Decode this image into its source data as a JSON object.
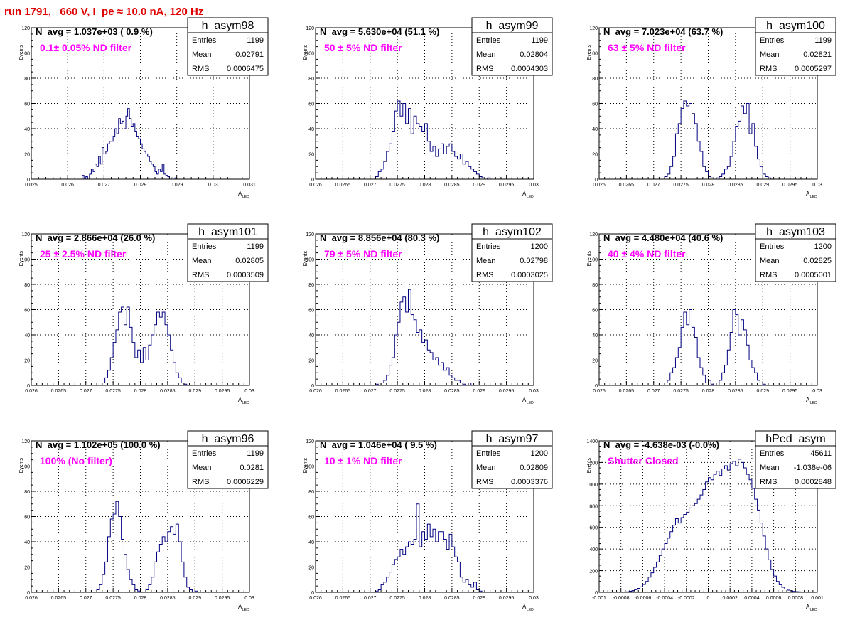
{
  "page": {
    "title": "run 1791,   660 V, I_pe ≈ 10.0 nA, 120 Hz",
    "colors": {
      "title": "#e00000",
      "annotation": "#ff00ff",
      "histogram": "#000080",
      "grid": "#000000"
    }
  },
  "chart_data": [
    {
      "type": "bar",
      "name": "h_asym98",
      "title": "N_avg = 1.037e+03 ( 0.9 %)",
      "annotation": "0.1± 0.05% ND filter",
      "stats": {
        "entries": "1199",
        "mean": "0.02791",
        "rms": "0.0006475"
      },
      "xlabel": "A",
      "xlabel_sub": "LED",
      "ylabel": "Events",
      "xlim": [
        0.025,
        0.031
      ],
      "ylim": [
        0,
        120
      ],
      "xticks": [
        0.025,
        0.026,
        0.027,
        0.028,
        0.029,
        0.03,
        0.031
      ],
      "xticklabels": [
        "0.025",
        "0.026",
        "0.027",
        "0.028",
        "0.029",
        "0.03",
        "0.031"
      ],
      "yticks": [
        0,
        20,
        40,
        60,
        80,
        100,
        120
      ],
      "bin_edges": [
        0.0264,
        0.029
      ],
      "values": [
        3,
        0,
        2,
        0,
        4,
        8,
        6,
        12,
        10,
        18,
        12,
        25,
        20,
        22,
        28,
        30,
        30,
        34,
        40,
        36,
        48,
        44,
        46,
        40,
        50,
        56,
        48,
        42,
        44,
        38,
        34,
        32,
        28,
        24,
        22,
        20,
        18,
        14,
        12,
        10,
        6,
        4,
        8,
        6,
        12,
        4,
        3,
        2,
        0,
        1,
        0,
        1
      ]
    },
    {
      "type": "bar",
      "name": "h_asym99",
      "title": "N_avg = 5.630e+04 (51.1 %)",
      "annotation": "50 ± 5% ND filter",
      "stats": {
        "entries": "1199",
        "mean": "0.02804",
        "rms": "0.0004303"
      },
      "xlabel": "A",
      "xlabel_sub": "LED",
      "ylabel": "Events",
      "xlim": [
        0.026,
        0.03
      ],
      "ylim": [
        0,
        120
      ],
      "xticks": [
        0.026,
        0.0265,
        0.027,
        0.0275,
        0.028,
        0.0285,
        0.029,
        0.0295,
        0.03
      ],
      "xticklabels": [
        "0.026",
        "0.0265",
        "0.027",
        "0.0275",
        "0.028",
        "0.0285",
        "0.029",
        "0.0295",
        "0.03"
      ],
      "yticks": [
        0,
        20,
        40,
        60,
        80,
        100,
        120
      ],
      "bin_edges": [
        0.0271,
        0.0293
      ],
      "values": [
        2,
        6,
        8,
        14,
        22,
        28,
        38,
        54,
        62,
        50,
        60,
        44,
        56,
        36,
        50,
        44,
        42,
        38,
        44,
        30,
        22,
        26,
        18,
        24,
        28,
        20,
        26,
        28,
        22,
        18,
        16,
        20,
        12,
        14,
        10,
        8,
        6,
        4,
        2,
        1,
        0,
        1,
        0,
        0
      ]
    },
    {
      "type": "bar",
      "name": "h_asym100",
      "title": "N_avg = 7.023e+04 (63.7 %)",
      "annotation": "63 ± 5% ND filter",
      "stats": {
        "entries": "1199",
        "mean": "0.02821",
        "rms": "0.0005297"
      },
      "xlabel": "A",
      "xlabel_sub": "LED",
      "ylabel": "Events",
      "xlim": [
        0.026,
        0.03
      ],
      "ylim": [
        0,
        120
      ],
      "xticks": [
        0.026,
        0.0265,
        0.027,
        0.0275,
        0.028,
        0.0285,
        0.029,
        0.0295,
        0.03
      ],
      "xticklabels": [
        "0.026",
        "0.0265",
        "0.027",
        "0.0275",
        "0.028",
        "0.0285",
        "0.029",
        "0.0295",
        "0.03"
      ],
      "yticks": [
        0,
        20,
        40,
        60,
        80,
        100,
        120
      ],
      "bin_edges": [
        0.0272,
        0.0294
      ],
      "values": [
        2,
        4,
        10,
        18,
        36,
        44,
        56,
        62,
        58,
        60,
        52,
        44,
        30,
        22,
        10,
        6,
        2,
        1,
        0,
        1,
        2,
        4,
        8,
        10,
        18,
        30,
        42,
        46,
        58,
        52,
        60,
        36,
        44,
        26,
        16,
        10,
        4,
        2,
        1,
        0,
        0,
        0,
        0,
        0
      ]
    },
    {
      "type": "bar",
      "name": "h_asym101",
      "title": "N_avg = 2.866e+04 (26.0 %)",
      "annotation": "25 ± 2.5% ND filter",
      "stats": {
        "entries": "1199",
        "mean": "0.02805",
        "rms": "0.0003509"
      },
      "xlabel": "A",
      "xlabel_sub": "LED",
      "ylabel": "Events",
      "xlim": [
        0.026,
        0.03
      ],
      "ylim": [
        0,
        120
      ],
      "xticks": [
        0.026,
        0.0265,
        0.027,
        0.0275,
        0.028,
        0.0285,
        0.029,
        0.0295,
        0.03
      ],
      "xticklabels": [
        "0.026",
        "0.0265",
        "0.027",
        "0.0275",
        "0.028",
        "0.0285",
        "0.029",
        "0.0295",
        "0.03"
      ],
      "yticks": [
        0,
        20,
        40,
        60,
        80,
        100,
        120
      ],
      "bin_edges": [
        0.0273,
        0.029
      ],
      "values": [
        2,
        6,
        12,
        22,
        34,
        44,
        58,
        62,
        48,
        62,
        46,
        34,
        22,
        28,
        18,
        30,
        20,
        32,
        40,
        48,
        58,
        54,
        58,
        48,
        40,
        28,
        18,
        10,
        6,
        2,
        1,
        0,
        0,
        0
      ]
    },
    {
      "type": "bar",
      "name": "h_asym102",
      "title": "N_avg = 8.856e+04 (80.3 %)",
      "annotation": "79 ± 5% ND filter",
      "stats": {
        "entries": "1200",
        "mean": "0.02798",
        "rms": "0.0003025"
      },
      "xlabel": "A",
      "xlabel_sub": "LED",
      "ylabel": "Events",
      "xlim": [
        0.026,
        0.03
      ],
      "ylim": [
        0,
        120
      ],
      "xticks": [
        0.026,
        0.0265,
        0.027,
        0.0275,
        0.028,
        0.0285,
        0.029,
        0.0295,
        0.03
      ],
      "xticklabels": [
        "0.026",
        "0.0265",
        "0.027",
        "0.0275",
        "0.028",
        "0.0285",
        "0.029",
        "0.0295",
        "0.03"
      ],
      "yticks": [
        0,
        20,
        40,
        60,
        80,
        100,
        120
      ],
      "bin_edges": [
        0.0271,
        0.029
      ],
      "values": [
        1,
        0,
        2,
        4,
        8,
        16,
        22,
        40,
        50,
        66,
        70,
        58,
        76,
        56,
        52,
        42,
        44,
        34,
        36,
        28,
        26,
        20,
        22,
        16,
        18,
        12,
        14,
        8,
        6,
        4,
        4,
        2,
        1,
        0,
        2,
        0,
        0,
        0
      ]
    },
    {
      "type": "bar",
      "name": "h_asym103",
      "title": "N_avg = 4.480e+04 (40.6 %)",
      "annotation": "40 ± 4% ND filter",
      "stats": {
        "entries": "1200",
        "mean": "0.02825",
        "rms": "0.0005001"
      },
      "xlabel": "A",
      "xlabel_sub": "LED",
      "ylabel": "Events",
      "xlim": [
        0.026,
        0.03
      ],
      "ylim": [
        0,
        120
      ],
      "xticks": [
        0.026,
        0.0265,
        0.027,
        0.0275,
        0.028,
        0.0285,
        0.029,
        0.0295,
        0.03
      ],
      "xticklabels": [
        "0.026",
        "0.0265",
        "0.027",
        "0.0275",
        "0.028",
        "0.0285",
        "0.029",
        "0.0295",
        "0.03"
      ],
      "yticks": [
        0,
        20,
        40,
        60,
        80,
        100,
        120
      ],
      "bin_edges": [
        0.0272,
        0.0294
      ],
      "values": [
        2,
        4,
        10,
        14,
        22,
        30,
        46,
        58,
        48,
        60,
        46,
        38,
        22,
        14,
        8,
        2,
        4,
        1,
        0,
        2,
        4,
        10,
        16,
        28,
        42,
        60,
        56,
        40,
        52,
        44,
        32,
        20,
        14,
        10,
        4,
        2,
        1,
        0,
        0,
        0,
        0,
        0,
        0,
        0
      ]
    },
    {
      "type": "bar",
      "name": "h_asym96",
      "title": "N_avg = 1.102e+05 (100.0 %)",
      "annotation": "100% (No filter)",
      "stats": {
        "entries": "1199",
        "mean": "0.0281",
        "rms": "0.0006229"
      },
      "xlabel": "A",
      "xlabel_sub": "LED",
      "ylabel": "Events",
      "xlim": [
        0.026,
        0.03
      ],
      "ylim": [
        0,
        120
      ],
      "xticks": [
        0.026,
        0.0265,
        0.027,
        0.0275,
        0.028,
        0.0285,
        0.029,
        0.0295,
        0.03
      ],
      "xticklabels": [
        "0.026",
        "0.0265",
        "0.027",
        "0.0275",
        "0.028",
        "0.0285",
        "0.029",
        "0.0295",
        "0.03"
      ],
      "yticks": [
        0,
        20,
        40,
        60,
        80,
        100,
        120
      ],
      "bin_edges": [
        0.0272,
        0.0292
      ],
      "values": [
        2,
        6,
        14,
        24,
        44,
        58,
        62,
        72,
        60,
        42,
        30,
        18,
        10,
        6,
        2,
        1,
        0,
        0,
        2,
        6,
        12,
        24,
        32,
        38,
        44,
        40,
        48,
        52,
        46,
        54,
        40,
        24,
        12,
        4,
        2,
        0,
        1,
        0,
        0,
        0
      ]
    },
    {
      "type": "bar",
      "name": "h_asym97",
      "title": "N_avg = 1.046e+04 ( 9.5 %)",
      "annotation": "10 ± 1% ND filter",
      "stats": {
        "entries": "1200",
        "mean": "0.02809",
        "rms": "0.0003376"
      },
      "xlabel": "A",
      "xlabel_sub": "LED",
      "ylabel": "Events",
      "xlim": [
        0.026,
        0.03
      ],
      "ylim": [
        0,
        120
      ],
      "xticks": [
        0.026,
        0.0265,
        0.027,
        0.0275,
        0.028,
        0.0285,
        0.029,
        0.0295,
        0.03
      ],
      "xticklabels": [
        "0.026",
        "0.0265",
        "0.027",
        "0.0275",
        "0.028",
        "0.0285",
        "0.029",
        "0.0295",
        "0.03"
      ],
      "yticks": [
        0,
        20,
        40,
        60,
        80,
        100,
        120
      ],
      "bin_edges": [
        0.0271,
        0.0291
      ],
      "values": [
        1,
        2,
        6,
        8,
        12,
        16,
        22,
        26,
        28,
        34,
        30,
        36,
        40,
        38,
        42,
        70,
        36,
        48,
        42,
        54,
        44,
        50,
        40,
        48,
        48,
        42,
        34,
        46,
        36,
        28,
        24,
        12,
        8,
        10,
        6,
        4,
        8,
        2,
        1,
        0
      ]
    },
    {
      "type": "bar",
      "name": "hPed_asym",
      "title": "N_avg = -4.638e-03 (-0.0%)",
      "annotation": "Shutter Closed",
      "stats": {
        "entries": "45611",
        "mean": "-1.038e-06",
        "rms": "0.0002848"
      },
      "xlabel": "A",
      "xlabel_sub": "LED",
      "ylabel": "Events",
      "xlim": [
        -0.001,
        0.001
      ],
      "ylim": [
        0,
        1400
      ],
      "xticks": [
        -0.001,
        -0.0008,
        -0.0006,
        -0.0004,
        -0.0002,
        0,
        0.0002,
        0.0004,
        0.0006,
        0.0008,
        0.001
      ],
      "xticklabels": [
        "-0.001",
        "-0.0008",
        "-0.0006",
        "-0.0004",
        "-0.0002",
        "0",
        "0.0002",
        "0.0004",
        "0.0006",
        "0.0008",
        "0.001"
      ],
      "yticks": [
        0,
        200,
        400,
        600,
        800,
        1000,
        1200,
        1400
      ],
      "bin_edges": [
        -0.00075,
        0.00085
      ],
      "values": [
        4,
        10,
        16,
        24,
        36,
        50,
        72,
        100,
        140,
        180,
        230,
        280,
        340,
        400,
        450,
        500,
        560,
        620,
        680,
        640,
        690,
        720,
        740,
        780,
        800,
        820,
        860,
        900,
        950,
        1020,
        1060,
        1040,
        1090,
        1120,
        1080,
        1140,
        1170,
        1130,
        1190,
        1210,
        1170,
        1230,
        1200,
        1150,
        1090,
        1040,
        960,
        860,
        760,
        640,
        520,
        400,
        300,
        210,
        150,
        100,
        70,
        46,
        30,
        20,
        14,
        8,
        6,
        4
      ]
    }
  ]
}
